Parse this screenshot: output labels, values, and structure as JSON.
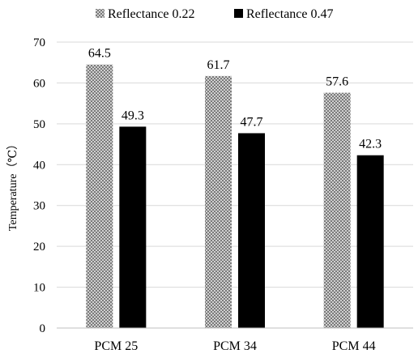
{
  "chart_data": {
    "type": "bar",
    "title": "",
    "categories": [
      "PCM 25",
      "PCM 34",
      "PCM 44"
    ],
    "series": [
      {
        "name": "Reflectance 0.22",
        "values": [
          64.5,
          61.7,
          57.6
        ],
        "data_labels": [
          "64.5",
          "61.7",
          "57.6"
        ],
        "color": "#a6a6a6",
        "pattern": "checkered"
      },
      {
        "name": "Reflectance 0.47",
        "values": [
          49.3,
          47.7,
          42.3
        ],
        "data_labels": [
          "49.3",
          "47.7",
          "42.3"
        ],
        "color": "#000000",
        "pattern": "solid"
      }
    ],
    "xlabel": "",
    "ylabel": "Temperature（℃）",
    "ylim": [
      0,
      70
    ],
    "yticks": [
      "0",
      "10",
      "20",
      "30",
      "40",
      "50",
      "60",
      "70"
    ],
    "grid": true,
    "legend_position": "top"
  }
}
